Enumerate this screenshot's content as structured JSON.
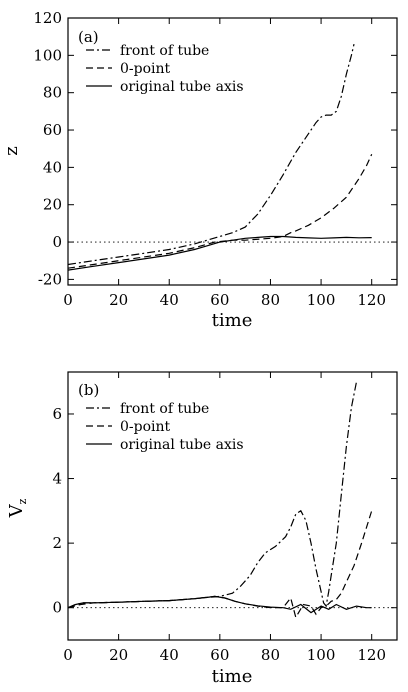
{
  "chart_data": [
    {
      "type": "line",
      "panel_label": "(a)",
      "xlabel": "time",
      "ylabel": "z",
      "ylabel_sub": "",
      "xlim": [
        0,
        130
      ],
      "ylim": [
        -23,
        120
      ],
      "xticks": [
        0,
        20,
        40,
        60,
        80,
        100,
        120
      ],
      "yticks": [
        -20,
        0,
        20,
        40,
        60,
        80,
        100,
        120
      ],
      "zero_line": true,
      "legend_position": "top-left",
      "series": [
        {
          "name": "front of tube",
          "dash": "dashdot",
          "points": [
            [
              0,
              -12
            ],
            [
              10,
              -10
            ],
            [
              20,
              -8
            ],
            [
              30,
              -6
            ],
            [
              40,
              -4
            ],
            [
              50,
              -1
            ],
            [
              55,
              1
            ],
            [
              60,
              3
            ],
            [
              65,
              5
            ],
            [
              70,
              8
            ],
            [
              75,
              15
            ],
            [
              80,
              25
            ],
            [
              85,
              36
            ],
            [
              90,
              48
            ],
            [
              95,
              58
            ],
            [
              98,
              64
            ],
            [
              100,
              67
            ],
            [
              102,
              68
            ],
            [
              104,
              68
            ],
            [
              106,
              70
            ],
            [
              108,
              78
            ],
            [
              110,
              90
            ],
            [
              112,
              100
            ],
            [
              113,
              106
            ]
          ]
        },
        {
          "name": "0-point",
          "dash": "dash",
          "points": [
            [
              0,
              -14
            ],
            [
              10,
              -12
            ],
            [
              20,
              -10
            ],
            [
              30,
              -8
            ],
            [
              40,
              -6
            ],
            [
              50,
              -3
            ],
            [
              58,
              0
            ],
            [
              65,
              1
            ],
            [
              70,
              1
            ],
            [
              80,
              2
            ],
            [
              85,
              3
            ],
            [
              88,
              5
            ],
            [
              90,
              6
            ],
            [
              95,
              9
            ],
            [
              100,
              13
            ],
            [
              105,
              18
            ],
            [
              110,
              24
            ],
            [
              115,
              34
            ],
            [
              118,
              41
            ],
            [
              120,
              47
            ]
          ]
        },
        {
          "name": "original tube axis",
          "dash": "solid",
          "points": [
            [
              0,
              -15
            ],
            [
              10,
              -13
            ],
            [
              20,
              -11
            ],
            [
              30,
              -9
            ],
            [
              40,
              -7
            ],
            [
              50,
              -4
            ],
            [
              55,
              -2
            ],
            [
              60,
              0
            ],
            [
              65,
              1
            ],
            [
              70,
              2
            ],
            [
              75,
              2.5
            ],
            [
              80,
              3
            ],
            [
              85,
              3
            ],
            [
              90,
              2.5
            ],
            [
              95,
              2.2
            ],
            [
              100,
              2
            ],
            [
              105,
              2.2
            ],
            [
              110,
              2.5
            ],
            [
              115,
              2.3
            ],
            [
              120,
              2.4
            ]
          ]
        }
      ]
    },
    {
      "type": "line",
      "panel_label": "(b)",
      "xlabel": "time",
      "ylabel": "V",
      "ylabel_sub": "z",
      "xlim": [
        0,
        130
      ],
      "ylim": [
        -1,
        7.3
      ],
      "xticks": [
        0,
        20,
        40,
        60,
        80,
        100,
        120
      ],
      "yticks": [
        0,
        2,
        4,
        6
      ],
      "zero_line": true,
      "legend_position": "top-left",
      "series": [
        {
          "name": "front of tube",
          "dash": "dashdot",
          "points": [
            [
              0,
              0
            ],
            [
              3,
              0.1
            ],
            [
              6,
              0.15
            ],
            [
              10,
              0.15
            ],
            [
              20,
              0.17
            ],
            [
              30,
              0.2
            ],
            [
              40,
              0.22
            ],
            [
              50,
              0.28
            ],
            [
              55,
              0.32
            ],
            [
              60,
              0.35
            ],
            [
              65,
              0.45
            ],
            [
              68,
              0.65
            ],
            [
              72,
              1.0
            ],
            [
              75,
              1.4
            ],
            [
              78,
              1.7
            ],
            [
              82,
              1.9
            ],
            [
              86,
              2.2
            ],
            [
              88,
              2.5
            ],
            [
              90,
              2.9
            ],
            [
              92,
              3.0
            ],
            [
              94,
              2.7
            ],
            [
              96,
              2.0
            ],
            [
              98,
              1.2
            ],
            [
              100,
              0.5
            ],
            [
              101,
              0.15
            ],
            [
              102,
              0.05
            ],
            [
              103,
              0.5
            ],
            [
              104,
              1.0
            ],
            [
              106,
              2.0
            ],
            [
              108,
              3.5
            ],
            [
              110,
              5.0
            ],
            [
              112,
              6.2
            ],
            [
              114,
              7.0
            ]
          ]
        },
        {
          "name": "0-point",
          "dash": "dash",
          "points": [
            [
              0,
              0
            ],
            [
              5,
              0.1
            ],
            [
              10,
              0.15
            ],
            [
              20,
              0.17
            ],
            [
              30,
              0.2
            ],
            [
              40,
              0.22
            ],
            [
              50,
              0.28
            ],
            [
              58,
              0.35
            ],
            [
              62,
              0.3
            ],
            [
              66,
              0.2
            ],
            [
              70,
              0.12
            ],
            [
              75,
              0.05
            ],
            [
              80,
              0.0
            ],
            [
              85,
              0.0
            ],
            [
              88,
              0.3
            ],
            [
              90,
              -0.3
            ],
            [
              93,
              0.1
            ],
            [
              96,
              0.05
            ],
            [
              98,
              -0.2
            ],
            [
              100,
              0.0
            ],
            [
              102,
              0.05
            ],
            [
              104,
              0.2
            ],
            [
              106,
              0.25
            ],
            [
              108,
              0.45
            ],
            [
              110,
              0.8
            ],
            [
              113,
              1.3
            ],
            [
              116,
              2.0
            ],
            [
              120,
              3.0
            ]
          ]
        },
        {
          "name": "original tube axis",
          "dash": "solid",
          "points": [
            [
              0,
              0
            ],
            [
              3,
              0.1
            ],
            [
              6,
              0.15
            ],
            [
              10,
              0.15
            ],
            [
              20,
              0.17
            ],
            [
              30,
              0.2
            ],
            [
              40,
              0.22
            ],
            [
              50,
              0.28
            ],
            [
              55,
              0.32
            ],
            [
              58,
              0.35
            ],
            [
              62,
              0.3
            ],
            [
              66,
              0.2
            ],
            [
              70,
              0.12
            ],
            [
              75,
              0.06
            ],
            [
              80,
              0.02
            ],
            [
              85,
              0.0
            ],
            [
              88,
              -0.05
            ],
            [
              92,
              0.1
            ],
            [
              96,
              -0.15
            ],
            [
              100,
              0.05
            ],
            [
              103,
              -0.05
            ],
            [
              106,
              0.1
            ],
            [
              110,
              -0.05
            ],
            [
              114,
              0.05
            ],
            [
              118,
              0.0
            ],
            [
              120,
              0.0
            ]
          ]
        }
      ]
    }
  ]
}
